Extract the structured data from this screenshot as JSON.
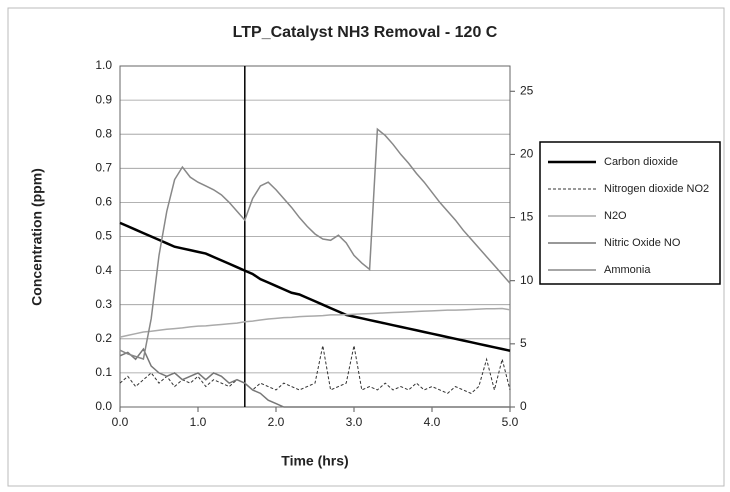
{
  "chart_data": {
    "type": "line",
    "title": "LTP_Catalyst NH3 Removal - 120 C",
    "x_label": "Time (hrs)",
    "y_label": "Concentration (ppm)",
    "x": [
      0,
      0.1,
      0.2,
      0.3,
      0.4,
      0.5,
      0.6,
      0.7,
      0.8,
      0.9,
      1.0,
      1.1,
      1.2,
      1.3,
      1.4,
      1.5,
      1.6,
      1.7,
      1.8,
      1.9,
      2.0,
      2.1,
      2.2,
      2.3,
      2.4,
      2.5,
      2.6,
      2.7,
      2.8,
      2.9,
      3.0,
      3.1,
      3.2,
      3.3,
      3.4,
      3.5,
      3.6,
      3.7,
      3.8,
      3.9,
      4.0,
      4.1,
      4.2,
      4.3,
      4.4,
      4.5,
      4.6,
      4.7,
      4.8,
      4.9,
      5.0
    ],
    "xlim": [
      0,
      5
    ],
    "xticks": [
      {
        "value": 0,
        "label": "0.0"
      },
      {
        "value": 1,
        "label": "1.0"
      },
      {
        "value": 2,
        "label": "2.0"
      },
      {
        "value": 3,
        "label": "3.0"
      },
      {
        "value": 4,
        "label": "4.0"
      },
      {
        "value": 5,
        "label": "5.0"
      }
    ],
    "ylim": [
      0,
      1
    ],
    "yticks": [
      {
        "value": 0,
        "label": "0.0"
      },
      {
        "value": 0.1,
        "label": "0.1"
      },
      {
        "value": 0.2,
        "label": "0.2"
      },
      {
        "value": 0.3,
        "label": "0.3"
      },
      {
        "value": 0.4,
        "label": "0.4"
      },
      {
        "value": 0.5,
        "label": "0.5"
      },
      {
        "value": 0.6,
        "label": "0.6"
      },
      {
        "value": 0.7,
        "label": "0.7"
      },
      {
        "value": 0.8,
        "label": "0.8"
      },
      {
        "value": 0.9,
        "label": "0.9"
      },
      {
        "value": 1,
        "label": "1.0"
      }
    ],
    "y2lim": [
      0,
      27
    ],
    "y2ticks": [
      0,
      5,
      10,
      15,
      20,
      25
    ],
    "grid": true,
    "legend": "right",
    "vertical_line": 1.6,
    "series": [
      {
        "name": "Carbon dioxide",
        "color": "#000000",
        "width": 2.5,
        "dash": false,
        "axis": "y",
        "values": [
          0.54,
          0.53,
          0.52,
          0.51,
          0.5,
          0.49,
          0.48,
          0.47,
          0.465,
          0.46,
          0.455,
          0.45,
          0.44,
          0.43,
          0.42,
          0.41,
          0.4,
          0.39,
          0.375,
          0.365,
          0.355,
          0.345,
          0.335,
          0.33,
          0.32,
          0.31,
          0.3,
          0.29,
          0.28,
          0.27,
          0.265,
          0.26,
          0.255,
          0.25,
          0.245,
          0.24,
          0.235,
          0.23,
          0.225,
          0.22,
          0.215,
          0.21,
          0.205,
          0.2,
          0.195,
          0.19,
          0.185,
          0.18,
          0.175,
          0.17,
          0.165
        ]
      },
      {
        "name": "Nitrogen dioxide NO2",
        "color": "#333333",
        "width": 1,
        "dash": true,
        "axis": "y",
        "values": [
          0.07,
          0.09,
          0.06,
          0.08,
          0.1,
          0.07,
          0.09,
          0.06,
          0.08,
          0.07,
          0.09,
          0.06,
          0.08,
          0.07,
          0.06,
          0.08,
          0.07,
          0.05,
          0.07,
          0.06,
          0.05,
          0.07,
          0.06,
          0.05,
          0.06,
          0.07,
          0.18,
          0.05,
          0.06,
          0.07,
          0.18,
          0.05,
          0.06,
          0.05,
          0.07,
          0.05,
          0.06,
          0.05,
          0.07,
          0.05,
          0.06,
          0.05,
          0.04,
          0.06,
          0.05,
          0.04,
          0.06,
          0.14,
          0.05,
          0.14,
          0.05
        ]
      },
      {
        "name": "N2O",
        "color": "#aaaaaa",
        "width": 1.5,
        "dash": false,
        "axis": "y",
        "values": [
          0.205,
          0.21,
          0.215,
          0.22,
          0.222,
          0.225,
          0.228,
          0.23,
          0.232,
          0.235,
          0.237,
          0.238,
          0.24,
          0.242,
          0.244,
          0.246,
          0.25,
          0.252,
          0.255,
          0.258,
          0.26,
          0.262,
          0.263,
          0.265,
          0.266,
          0.267,
          0.268,
          0.27,
          0.27,
          0.271,
          0.272,
          0.273,
          0.274,
          0.275,
          0.276,
          0.277,
          0.278,
          0.279,
          0.28,
          0.281,
          0.282,
          0.283,
          0.284,
          0.284,
          0.285,
          0.286,
          0.287,
          0.288,
          0.288,
          0.289,
          0.285
        ]
      },
      {
        "name": "Nitric Oxide NO",
        "color": "#777777",
        "width": 1.5,
        "dash": false,
        "axis": "y",
        "values": [
          0.15,
          0.16,
          0.14,
          0.17,
          0.12,
          0.1,
          0.09,
          0.1,
          0.08,
          0.09,
          0.1,
          0.08,
          0.1,
          0.09,
          0.07,
          0.08,
          0.07,
          0.05,
          0.04,
          0.02,
          0.01,
          0,
          0,
          0,
          0,
          0,
          0,
          0,
          0,
          0,
          0,
          0,
          0,
          0,
          0,
          0,
          0,
          0,
          0,
          0,
          0,
          0,
          0,
          0,
          0,
          0,
          0,
          0,
          0,
          0,
          0
        ]
      },
      {
        "name": "Ammonia",
        "color": "#888888",
        "width": 1.5,
        "dash": false,
        "axis": "y2",
        "values": [
          4.5,
          4.2,
          4,
          3.8,
          7,
          12,
          15.5,
          18,
          19,
          18.2,
          17.8,
          17.5,
          17.2,
          16.8,
          16.2,
          15.5,
          14.8,
          16.5,
          17.5,
          17.8,
          17.2,
          16.5,
          15.8,
          15,
          14.3,
          13.7,
          13.3,
          13.2,
          13.6,
          13,
          12,
          11.4,
          10.9,
          22,
          21.5,
          20.8,
          20,
          19.3,
          18.5,
          17.8,
          17,
          16.2,
          15.5,
          14.8,
          14,
          13.3,
          12.6,
          11.9,
          11.2,
          10.5,
          9.8
        ]
      }
    ]
  }
}
